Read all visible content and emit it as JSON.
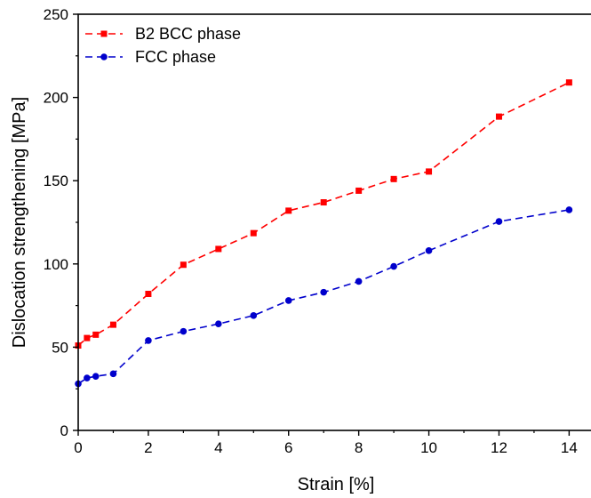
{
  "chart_data": {
    "type": "line",
    "title": "",
    "xlabel": "Strain [%]",
    "ylabel": "Dislocation strengthening [MPa]",
    "xlim": [
      0,
      14.7
    ],
    "ylim": [
      0,
      250
    ],
    "xticks": [
      0,
      2,
      4,
      6,
      8,
      10,
      12,
      14
    ],
    "yticks": [
      0,
      50,
      100,
      150,
      200,
      250
    ],
    "grid": false,
    "legend_position": "top-left",
    "series": [
      {
        "name": "B2 BCC phase",
        "color": "#ff0000",
        "marker": "square",
        "line_style": "dashed",
        "x": [
          0,
          0.25,
          0.5,
          1,
          2,
          3,
          4,
          5,
          6,
          7,
          8,
          9,
          10,
          12,
          14
        ],
        "y": [
          51,
          55.5,
          57.5,
          63.5,
          82,
          99.5,
          109,
          118.5,
          132,
          137,
          144,
          151,
          155.5,
          188.5,
          209
        ]
      },
      {
        "name": "FCC phase",
        "color": "#0000cc",
        "marker": "circle",
        "line_style": "dashed",
        "x": [
          0,
          0.25,
          0.5,
          1,
          2,
          3,
          4,
          5,
          6,
          7,
          8,
          9,
          10,
          12,
          14
        ],
        "y": [
          28,
          31.5,
          32.5,
          34,
          54,
          59.5,
          64,
          69,
          78,
          83,
          89.5,
          98.5,
          108,
          125.5,
          132.5
        ]
      }
    ]
  }
}
